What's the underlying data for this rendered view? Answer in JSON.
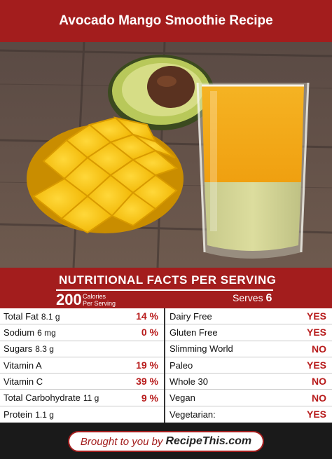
{
  "header": {
    "title": "Avocado Mango Smoothie Recipe"
  },
  "nutrition": {
    "heading": "NUTRITIONAL FACTS PER SERVING",
    "calories": "200",
    "calories_label_line1": "Calories",
    "calories_label_line2": "Per Serving",
    "serves_label": "Serves",
    "serves_value": "6"
  },
  "nutrients": [
    {
      "label": "Total Fat",
      "amount": "8.1 g",
      "percent": "14 %"
    },
    {
      "label": "Sodium",
      "amount": "6 mg",
      "percent": "0 %"
    },
    {
      "label": "Sugars",
      "amount": "8.3 g",
      "percent": ""
    },
    {
      "label": "Vitamin A",
      "amount": "",
      "percent": "19 %"
    },
    {
      "label": "Vitamin C",
      "amount": "",
      "percent": "39 %"
    },
    {
      "label": "Total Carbohydrate",
      "amount": "11 g",
      "percent": "9 %"
    },
    {
      "label": "Protein",
      "amount": "1.1 g",
      "percent": ""
    }
  ],
  "diets": [
    {
      "label": "Dairy Free",
      "value": "YES"
    },
    {
      "label": "Gluten Free",
      "value": "YES"
    },
    {
      "label": "Slimming World",
      "value": "NO"
    },
    {
      "label": "Paleo",
      "value": "YES"
    },
    {
      "label": "Whole 30",
      "value": "NO"
    },
    {
      "label": "Vegan",
      "value": "NO"
    },
    {
      "label": "Vegetarian:",
      "value": "YES"
    }
  ],
  "footer": {
    "by_text": "Brought to you by",
    "brand": "RecipeThis.com"
  },
  "colors": {
    "brand_red": "#a31d1d",
    "accent_red": "#b81c1c"
  }
}
